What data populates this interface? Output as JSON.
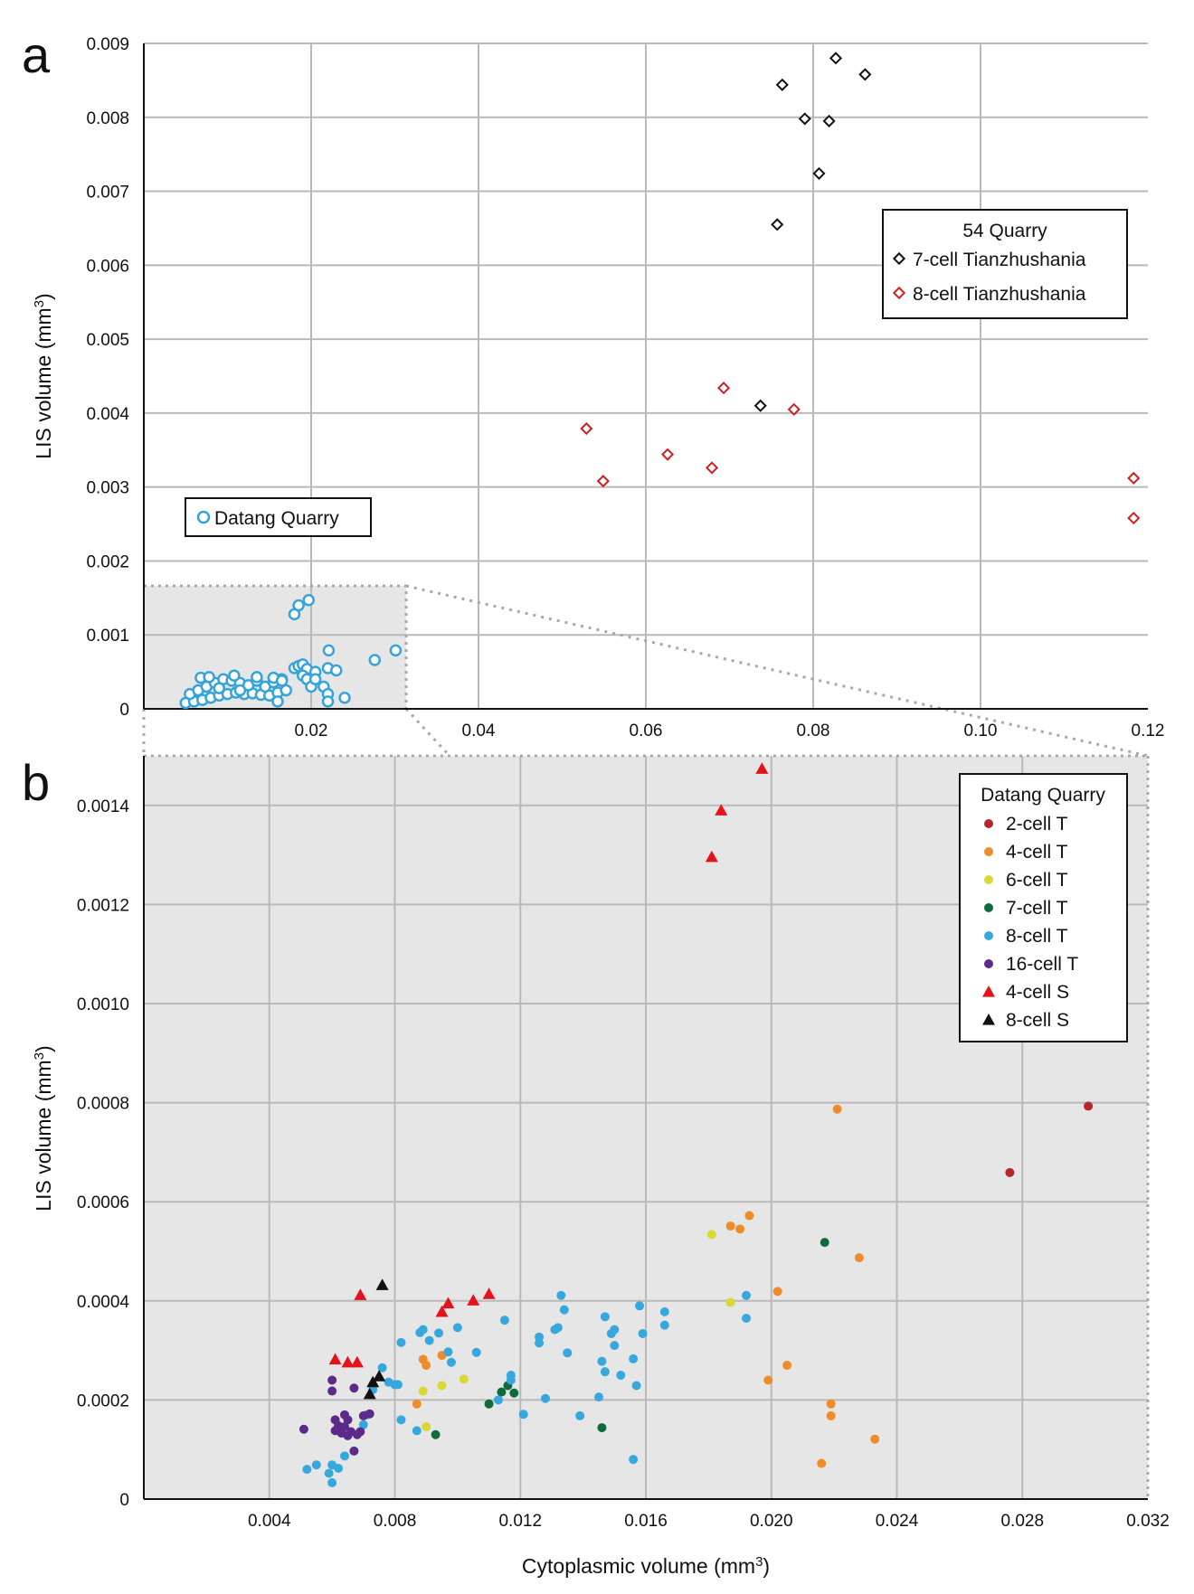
{
  "chart_data": [
    {
      "panel": "a",
      "type": "scatter",
      "xlabel": "",
      "ylabel": "LIS volume (mm3)",
      "xlim": [
        0,
        0.12
      ],
      "ylim": [
        0,
        0.009
      ],
      "x_ticks": [
        "0.02",
        "0.04",
        "0.06",
        "0.08",
        "0.10",
        "0.12"
      ],
      "y_ticks": [
        "0",
        "0.001",
        "0.002",
        "0.003",
        "0.004",
        "0.005",
        "0.006",
        "0.007",
        "0.008",
        "0.009"
      ],
      "grid": true,
      "legend_title": "54 Quarry",
      "legend_position": "right",
      "series": [
        {
          "name": "7-cell Tianzhushania",
          "color": "#111111",
          "marker": "diamond-open",
          "points": [
            [
              0.0763,
              0.00844
            ],
            [
              0.0827,
              0.0088
            ],
            [
              0.079,
              0.00798
            ],
            [
              0.0819,
              0.00795
            ],
            [
              0.0862,
              0.00858
            ],
            [
              0.0807,
              0.00724
            ],
            [
              0.0757,
              0.00655
            ],
            [
              0.0737,
              0.0041
            ]
          ]
        },
        {
          "name": "8-cell Tianzhushania",
          "color": "#d0201f",
          "marker": "diamond-open",
          "points": [
            [
              0.0529,
              0.00379
            ],
            [
              0.0549,
              0.00308
            ],
            [
              0.0626,
              0.00344
            ],
            [
              0.0693,
              0.00434
            ],
            [
              0.0679,
              0.00326
            ],
            [
              0.0777,
              0.00405
            ],
            [
              0.1183,
              0.00312
            ],
            [
              0.1183,
              0.00258
            ]
          ]
        },
        {
          "name": "Datang Quarry",
          "color": "#36a3d9",
          "marker": "circle-open",
          "points": [
            [
              0.005,
              8e-05
            ],
            [
              0.006,
              0.0001
            ],
            [
              0.007,
              0.00012
            ],
            [
              0.008,
              0.00015
            ],
            [
              0.009,
              0.00018
            ],
            [
              0.01,
              0.0002
            ],
            [
              0.011,
              0.00022
            ],
            [
              0.012,
              0.0002
            ],
            [
              0.013,
              0.00021
            ],
            [
              0.014,
              0.00019
            ],
            [
              0.015,
              0.00018
            ],
            [
              0.016,
              0.00022
            ],
            [
              0.017,
              0.00025
            ],
            [
              0.0055,
              0.0002
            ],
            [
              0.0065,
              0.00025
            ],
            [
              0.0075,
              0.0003
            ],
            [
              0.0085,
              0.00035
            ],
            [
              0.0095,
              0.0004
            ],
            [
              0.0105,
              0.00038
            ],
            [
              0.0115,
              0.00035
            ],
            [
              0.0125,
              0.00032
            ],
            [
              0.0135,
              0.00038
            ],
            [
              0.0145,
              0.0003
            ],
            [
              0.0155,
              0.00036
            ],
            [
              0.0165,
              0.0004
            ],
            [
              0.0068,
              0.00042
            ],
            [
              0.0078,
              0.00043
            ],
            [
              0.0108,
              0.00045
            ],
            [
              0.0135,
              0.00043
            ],
            [
              0.0155,
              0.00042
            ],
            [
              0.0165,
              0.00038
            ],
            [
              0.018,
              0.00055
            ],
            [
              0.0185,
              0.00058
            ],
            [
              0.019,
              0.0006
            ],
            [
              0.0195,
              0.00054
            ],
            [
              0.0205,
              0.0005
            ],
            [
              0.022,
              0.00055
            ],
            [
              0.023,
              0.00052
            ],
            [
              0.019,
              0.00045
            ],
            [
              0.0195,
              0.0004
            ],
            [
              0.02,
              0.0003
            ],
            [
              0.0205,
              0.0004
            ],
            [
              0.0215,
              0.0003
            ],
            [
              0.022,
              0.0002
            ],
            [
              0.024,
              0.00015
            ],
            [
              0.022,
              0.0001
            ],
            [
              0.018,
              0.00128
            ],
            [
              0.0185,
              0.0014
            ],
            [
              0.0197,
              0.00147
            ],
            [
              0.0221,
              0.00079
            ],
            [
              0.0276,
              0.00066
            ],
            [
              0.0301,
              0.00079
            ],
            [
              0.016,
              0.0001
            ],
            [
              0.009,
              0.00028
            ],
            [
              0.0115,
              0.00025
            ]
          ]
        }
      ],
      "inset_box": {
        "x": [
          0,
          0.032
        ],
        "y": [
          0,
          0.0016
        ]
      }
    },
    {
      "panel": "b",
      "type": "scatter",
      "xlabel": "Cytoplasmic volume (mm3)",
      "ylabel": "LIS volume (mm3)",
      "xlim": [
        0,
        0.032
      ],
      "ylim": [
        0,
        0.0015
      ],
      "x_ticks": [
        "0.004",
        "0.008",
        "0.012",
        "0.016",
        "0.020",
        "0.024",
        "0.028",
        "0.032"
      ],
      "y_ticks": [
        "0",
        "0.0002",
        "0.0004",
        "0.0006",
        "0.0008",
        "0.0010",
        "0.0012",
        "0.0014"
      ],
      "grid": true,
      "legend_title": "Datang Quarry",
      "legend_position": "top-right",
      "series": [
        {
          "name": "2-cell T",
          "color": "#b5272d",
          "marker": "circle",
          "points": [
            [
              0.0301,
              0.000793
            ],
            [
              0.0276,
              0.000659
            ]
          ]
        },
        {
          "name": "4-cell T",
          "color": "#ef8c2a",
          "marker": "circle",
          "points": [
            [
              0.0221,
              0.000787
            ],
            [
              0.0193,
              0.000572
            ],
            [
              0.0187,
              0.000551
            ],
            [
              0.019,
              0.000545
            ],
            [
              0.0228,
              0.000487
            ],
            [
              0.0202,
              0.000419
            ],
            [
              0.0205,
              0.00027
            ],
            [
              0.0199,
              0.00024
            ],
            [
              0.0219,
              0.000192
            ],
            [
              0.0219,
              0.000168
            ],
            [
              0.0233,
              0.000121
            ],
            [
              0.0216,
              7.2e-05
            ],
            [
              0.0089,
              0.000282
            ],
            [
              0.009,
              0.00027
            ],
            [
              0.0095,
              0.00029
            ],
            [
              0.0087,
              0.000192
            ]
          ]
        },
        {
          "name": "6-cell T",
          "color": "#d9d931",
          "marker": "circle",
          "points": [
            [
              0.0181,
              0.000534
            ],
            [
              0.0187,
              0.000397
            ],
            [
              0.0102,
              0.000242
            ],
            [
              0.0095,
              0.000229
            ],
            [
              0.0089,
              0.000218
            ],
            [
              0.009,
              0.000146
            ]
          ]
        },
        {
          "name": "7-cell T",
          "color": "#0f6b3c",
          "marker": "circle",
          "points": [
            [
              0.0217,
              0.000518
            ],
            [
              0.0116,
              0.000229
            ],
            [
              0.0114,
              0.000216
            ],
            [
              0.0118,
              0.000214
            ],
            [
              0.011,
              0.000192
            ],
            [
              0.0146,
              0.000144
            ],
            [
              0.0093,
              0.00013
            ]
          ]
        },
        {
          "name": "8-cell T",
          "color": "#36a8de",
          "marker": "circle",
          "points": [
            [
              0.0133,
              0.000411
            ],
            [
              0.0134,
              0.000382
            ],
            [
              0.0131,
              0.000342
            ],
            [
              0.0132,
              0.000346
            ],
            [
              0.0126,
              0.000327
            ],
            [
              0.0126,
              0.000315
            ],
            [
              0.0135,
              0.000295
            ],
            [
              0.0115,
              0.000361
            ],
            [
              0.0147,
              0.000368
            ],
            [
              0.0149,
              0.000334
            ],
            [
              0.015,
              0.000342
            ],
            [
              0.015,
              0.00031
            ],
            [
              0.0147,
              0.000257
            ],
            [
              0.0146,
              0.000278
            ],
            [
              0.0152,
              0.00025
            ],
            [
              0.0156,
              0.000283
            ],
            [
              0.0157,
              0.000229
            ],
            [
              0.0158,
              0.00039
            ],
            [
              0.0159,
              0.000334
            ],
            [
              0.0166,
              0.000378
            ],
            [
              0.0166,
              0.000351
            ],
            [
              0.0192,
              0.000411
            ],
            [
              0.0192,
              0.000365
            ],
            [
              0.0145,
              0.000206
            ],
            [
              0.0139,
              0.000168
            ],
            [
              0.0128,
              0.000203
            ],
            [
              0.0121,
              0.000171
            ],
            [
              0.0117,
              0.00025
            ],
            [
              0.0117,
              0.00024
            ],
            [
              0.0113,
              0.0002
            ],
            [
              0.0106,
              0.000296
            ],
            [
              0.01,
              0.000346
            ],
            [
              0.0098,
              0.000276
            ],
            [
              0.0097,
              0.000297
            ],
            [
              0.0094,
              0.000335
            ],
            [
              0.0091,
              0.00032
            ],
            [
              0.0089,
              0.000342
            ],
            [
              0.0088,
              0.000336
            ],
            [
              0.0082,
              0.000316
            ],
            [
              0.0081,
              0.000231
            ],
            [
              0.008,
              0.000231
            ],
            [
              0.0078,
              0.000236
            ],
            [
              0.0076,
              0.000265
            ],
            [
              0.0073,
              0.000221
            ],
            [
              0.0082,
              0.00016
            ],
            [
              0.0087,
              0.000138
            ],
            [
              0.0156,
              8e-05
            ],
            [
              0.0071,
              0.00017
            ],
            [
              0.007,
              0.00015
            ],
            [
              0.0064,
              8.7e-05
            ],
            [
              0.006,
              6.9e-05
            ],
            [
              0.0059,
              5.2e-05
            ],
            [
              0.0055,
              6.9e-05
            ],
            [
              0.0052,
              6e-05
            ],
            [
              0.006,
              3.3e-05
            ],
            [
              0.0062,
              6.2e-05
            ]
          ]
        },
        {
          "name": "16-cell T",
          "color": "#5b2a8a",
          "marker": "circle",
          "points": [
            [
              0.006,
              0.00024
            ],
            [
              0.006,
              0.000218
            ],
            [
              0.0067,
              0.000224
            ],
            [
              0.0051,
              0.000141
            ],
            [
              0.0061,
              0.00016
            ],
            [
              0.0062,
              0.000148
            ],
            [
              0.0064,
              0.00017
            ],
            [
              0.0065,
              0.00016
            ],
            [
              0.0063,
              0.000133
            ],
            [
              0.0065,
              0.000128
            ],
            [
              0.0061,
              0.000138
            ],
            [
              0.0064,
              0.000146
            ],
            [
              0.0066,
              0.000136
            ],
            [
              0.0068,
              0.00013
            ],
            [
              0.0069,
              0.000136
            ],
            [
              0.007,
              0.000168
            ],
            [
              0.0072,
              0.000172
            ],
            [
              0.0067,
              9.7e-05
            ]
          ]
        },
        {
          "name": "4-cell S",
          "color": "#e3131b",
          "marker": "triangle",
          "points": [
            [
              0.0197,
              0.001474
            ],
            [
              0.0184,
              0.00139
            ],
            [
              0.0181,
              0.001296
            ],
            [
              0.0069,
              0.000412
            ],
            [
              0.0061,
              0.000282
            ],
            [
              0.0065,
              0.000276
            ],
            [
              0.0068,
              0.000276
            ],
            [
              0.0095,
              0.000378
            ],
            [
              0.0097,
              0.000395
            ],
            [
              0.0105,
              0.000401
            ],
            [
              0.011,
              0.000414
            ]
          ]
        },
        {
          "name": "8-cell S",
          "color": "#111111",
          "marker": "triangle",
          "points": [
            [
              0.0076,
              0.000432
            ],
            [
              0.0075,
              0.000248
            ],
            [
              0.0073,
              0.000236
            ],
            [
              0.0072,
              0.000212
            ]
          ]
        }
      ]
    }
  ],
  "labels": {
    "panel_a": "a",
    "panel_b": "b",
    "a_ylabel": "LIS volume (mm",
    "a_ylabel_sup": "3",
    "a_ylabel_end": ")",
    "b_ylabel": "LIS volume (mm",
    "b_ylabel_sup": "3",
    "b_ylabel_end": ")",
    "b_xlabel": "Cytoplasmic volume (mm",
    "b_xlabel_sup": "3",
    "b_xlabel_end": ")",
    "a_legend_title": "54 Quarry",
    "a_legend_7": "7-cell Tianzhushania",
    "a_legend_8": "8-cell Tianzhushania",
    "a_datang": "Datang Quarry",
    "b_legend_title": "Datang Quarry"
  },
  "colors": {
    "grid": "#b9b9b9",
    "inset_fill": "#e6e6e6",
    "inset_border": "#a8a8a8"
  }
}
